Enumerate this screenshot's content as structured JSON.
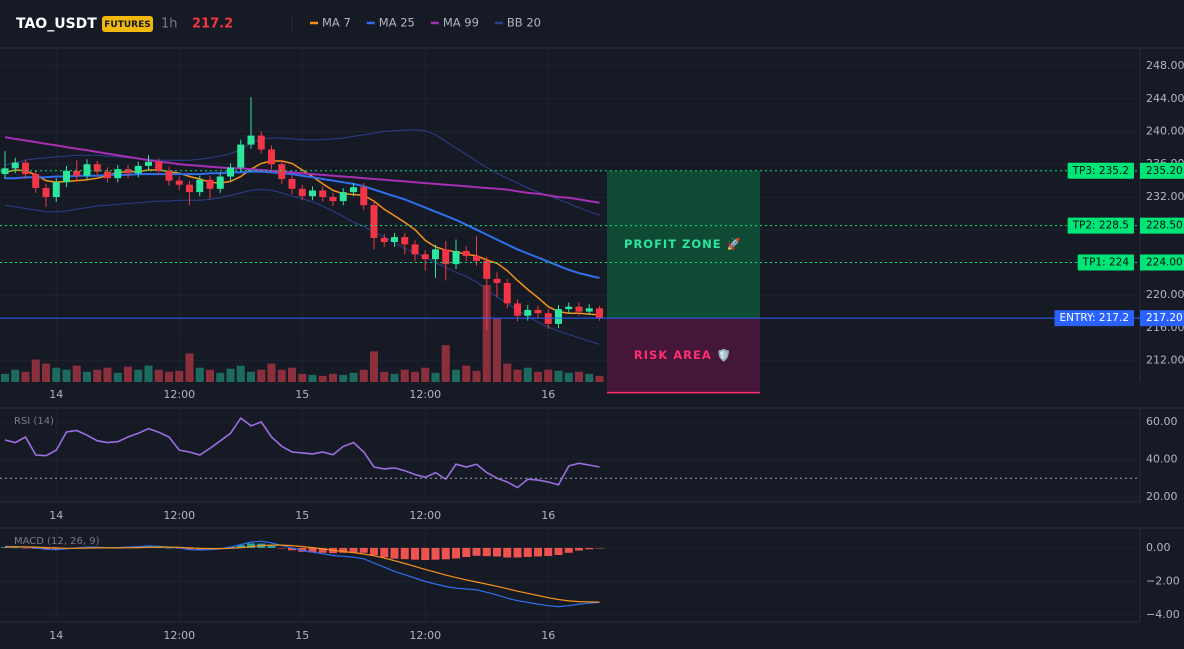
{
  "header": {
    "symbol": "TAO_USDT",
    "badge": "FUTURES",
    "interval": "1h",
    "price": 217.2
  },
  "chart_data": [
    {
      "type": "candlestick",
      "categories": [
        null,
        null,
        null,
        null,
        null,
        "14",
        null,
        null,
        null,
        null,
        null,
        null,
        null,
        null,
        null,
        null,
        null,
        "12:00",
        null,
        null,
        null,
        null,
        null,
        null,
        null,
        null,
        null,
        null,
        null,
        "15",
        null,
        null,
        null,
        null,
        null,
        null,
        null,
        null,
        null,
        null,
        null,
        "12:00",
        null,
        null,
        null,
        null,
        null,
        null,
        null,
        null,
        null,
        null,
        null,
        "16",
        null,
        null,
        null,
        null,
        null
      ],
      "open": [
        234.8,
        235.5,
        236.2,
        234.8,
        233.1,
        232.0,
        233.8,
        235.2,
        234.6,
        236.0,
        235.1,
        234.3,
        235.4,
        234.9,
        235.8,
        236.3,
        235.2,
        234.0,
        233.5,
        232.6,
        234.1,
        233.0,
        234.5,
        235.6,
        238.4,
        239.5,
        237.8,
        236.0,
        234.2,
        233.0,
        232.1,
        232.8,
        232.0,
        231.5,
        232.6,
        233.2,
        231.0,
        227.0,
        226.5,
        227.1,
        226.2,
        225.0,
        224.4,
        225.6,
        223.8,
        225.4,
        224.8,
        224.2,
        222.0,
        221.5,
        219.0,
        217.5,
        218.2,
        217.8,
        216.5,
        218.3,
        218.6,
        218.0,
        218.4
      ],
      "high": [
        237.6,
        236.8,
        236.6,
        235.3,
        233.6,
        234.3,
        235.8,
        236.5,
        236.6,
        236.4,
        235.6,
        235.9,
        235.9,
        236.3,
        237.1,
        236.7,
        235.7,
        234.5,
        234.0,
        234.6,
        234.6,
        235.0,
        236.1,
        239.0,
        244.2,
        240.0,
        238.3,
        236.5,
        234.7,
        233.5,
        233.3,
        233.3,
        232.5,
        233.1,
        233.7,
        233.7,
        231.5,
        227.5,
        227.6,
        227.6,
        226.7,
        225.5,
        226.2,
        226.6,
        226.8,
        226.0,
        227.2,
        224.7,
        222.8,
        222.0,
        219.5,
        218.8,
        218.7,
        218.3,
        218.8,
        219.1,
        219.1,
        218.9,
        218.7
      ],
      "low": [
        234.2,
        234.9,
        234.2,
        232.5,
        230.8,
        231.4,
        233.2,
        234.0,
        234.1,
        234.6,
        233.8,
        233.8,
        234.3,
        234.4,
        235.3,
        234.7,
        233.4,
        232.9,
        231.0,
        232.1,
        231.8,
        232.5,
        234.0,
        235.1,
        237.9,
        237.3,
        235.4,
        233.6,
        232.3,
        231.6,
        231.6,
        231.4,
        230.9,
        231.0,
        232.1,
        230.4,
        225.6,
        225.9,
        225.9,
        225.0,
        224.2,
        223.0,
        222.1,
        221.8,
        223.2,
        224.2,
        223.6,
        215.8,
        219.8,
        218.4,
        216.8,
        216.9,
        217.2,
        215.9,
        216.0,
        217.8,
        217.5,
        217.6,
        216.9
      ],
      "close": [
        235.5,
        236.2,
        234.8,
        233.1,
        232.0,
        233.8,
        235.2,
        234.6,
        236.0,
        235.1,
        234.3,
        235.4,
        234.9,
        235.8,
        236.3,
        235.2,
        234.0,
        233.5,
        232.6,
        234.1,
        233.0,
        234.5,
        235.6,
        238.4,
        239.5,
        237.8,
        236.0,
        234.2,
        233.0,
        232.1,
        232.8,
        232.0,
        231.5,
        232.6,
        233.2,
        231.0,
        227.0,
        226.5,
        227.1,
        226.2,
        225.0,
        224.4,
        225.6,
        223.8,
        225.4,
        224.8,
        224.2,
        222.0,
        221.5,
        219.0,
        217.5,
        218.2,
        217.8,
        216.5,
        218.3,
        218.6,
        218.0,
        218.4,
        217.2
      ],
      "up_color": "#2ee59d",
      "down_color": "#f23645",
      "volume": [
        8,
        12,
        10,
        22,
        18,
        14,
        12,
        16,
        10,
        12,
        14,
        9,
        15,
        12,
        16,
        12,
        10,
        11,
        28,
        14,
        12,
        9,
        13,
        16,
        10,
        12,
        18,
        12,
        14,
        8,
        7,
        6,
        8,
        7,
        9,
        12,
        30,
        10,
        8,
        12,
        10,
        14,
        9,
        36,
        12,
        16,
        11,
        95,
        62,
        18,
        12,
        14,
        10,
        12,
        11,
        9,
        10,
        8,
        6
      ],
      "volume_up_color": "#1c6b5e",
      "volume_down_color": "#8c2f3c",
      "series": [
        {
          "name": "MA 7",
          "color": "#f7931a",
          "values": [
            235.0,
            235.3,
            235.2,
            234.7,
            234.0,
            233.8,
            233.9,
            234.0,
            234.1,
            234.3,
            234.6,
            235.0,
            235.1,
            235.1,
            235.3,
            235.3,
            235.1,
            234.9,
            234.5,
            234.2,
            233.8,
            233.7,
            233.9,
            234.5,
            235.4,
            236.1,
            236.4,
            236.4,
            236.1,
            235.3,
            234.5,
            233.6,
            232.8,
            232.4,
            232.3,
            232.2,
            231.5,
            230.5,
            229.7,
            228.9,
            228.0,
            226.7,
            225.9,
            225.5,
            225.3,
            225.0,
            224.8,
            224.3,
            223.9,
            223.0,
            221.8,
            220.7,
            219.7,
            218.6,
            218.0,
            217.8,
            217.8,
            217.7,
            217.6
          ]
        },
        {
          "name": "MA 25",
          "color": "#2f6fed",
          "values": [
            234.3,
            234.3,
            234.4,
            234.4,
            234.4,
            234.5,
            234.5,
            234.6,
            234.6,
            234.6,
            234.7,
            234.7,
            234.7,
            234.8,
            234.8,
            234.8,
            234.8,
            234.8,
            234.8,
            234.8,
            234.9,
            234.9,
            235.0,
            235.0,
            235.1,
            235.1,
            235.0,
            234.9,
            234.8,
            234.6,
            234.4,
            234.2,
            234.0,
            233.8,
            233.6,
            233.3,
            232.9,
            232.5,
            232.1,
            231.7,
            231.2,
            230.7,
            230.2,
            229.7,
            229.2,
            228.6,
            228.0,
            227.4,
            226.8,
            226.2,
            225.6,
            225.1,
            224.6,
            224.1,
            223.6,
            223.1,
            222.7,
            222.4,
            222.1
          ]
        },
        {
          "name": "MA 99",
          "color": "#a62fb5",
          "values": [
            239.3,
            239.1,
            238.9,
            238.7,
            238.5,
            238.3,
            238.1,
            237.9,
            237.7,
            237.5,
            237.3,
            237.1,
            236.9,
            236.7,
            236.5,
            236.3,
            236.2,
            236.0,
            235.9,
            235.8,
            235.7,
            235.6,
            235.5,
            235.5,
            235.4,
            235.3,
            235.2,
            235.1,
            235.0,
            234.9,
            234.8,
            234.7,
            234.6,
            234.5,
            234.4,
            234.3,
            234.2,
            234.1,
            234.0,
            233.9,
            233.8,
            233.7,
            233.6,
            233.5,
            233.4,
            233.3,
            233.2,
            233.1,
            233.0,
            232.9,
            232.7,
            232.5,
            232.4,
            232.2,
            232.0,
            231.9,
            231.7,
            231.5,
            231.3
          ]
        }
      ],
      "bands": {
        "name": "BB 20",
        "color": "#2a3f8e",
        "upper": [
          235.9,
          236.2,
          236.5,
          236.7,
          236.8,
          236.9,
          237.0,
          237.1,
          237.1,
          237.1,
          237.0,
          236.9,
          236.8,
          236.7,
          236.6,
          236.5,
          236.5,
          236.5,
          236.5,
          236.6,
          236.8,
          237.0,
          237.3,
          237.8,
          238.6,
          239.1,
          239.2,
          239.2,
          239.1,
          239.0,
          239.0,
          239.0,
          239.1,
          239.2,
          239.4,
          239.6,
          239.8,
          240.0,
          240.1,
          240.2,
          240.2,
          240.1,
          239.6,
          238.8,
          238.0,
          237.2,
          236.4,
          235.6,
          234.9,
          234.3,
          233.7,
          233.1,
          232.6,
          232.2,
          231.7,
          231.2,
          230.7,
          230.2,
          229.8
        ],
        "lower": [
          231.0,
          230.8,
          230.6,
          230.4,
          230.2,
          230.2,
          230.3,
          230.5,
          230.7,
          230.9,
          231.0,
          231.1,
          231.2,
          231.3,
          231.4,
          231.5,
          231.5,
          231.6,
          231.6,
          231.6,
          231.7,
          231.9,
          232.2,
          232.5,
          232.8,
          232.9,
          232.8,
          232.5,
          232.1,
          231.8,
          231.4,
          230.9,
          230.3,
          229.6,
          228.9,
          228.4,
          227.8,
          227.1,
          226.4,
          225.7,
          225.2,
          224.6,
          224.0,
          223.4,
          222.8,
          222.3,
          221.6,
          220.7,
          219.8,
          219.0,
          218.2,
          217.4,
          216.7,
          216.1,
          215.6,
          215.2,
          214.8,
          214.4,
          214.0
        ]
      },
      "ylim": [
        209.4,
        250.2
      ],
      "yticks": [
        {
          "value": 248,
          "label": "248.00"
        },
        {
          "value": 244,
          "label": "244.00"
        },
        {
          "value": 240,
          "label": "240.00"
        },
        {
          "value": 236,
          "label": "236.00"
        },
        {
          "value": 232,
          "label": "232.00"
        },
        {
          "value": 228,
          "label": "228.00"
        },
        {
          "value": 224,
          "label": "224.00"
        },
        {
          "value": 220,
          "label": "220.00"
        },
        {
          "value": 216,
          "label": "216.00"
        },
        {
          "value": 212,
          "label": "212.00"
        }
      ],
      "levels": [
        {
          "label": "TP3: 235.2",
          "value": 235.2,
          "price_label": "235.20",
          "color": "#00e676",
          "text_color": "#0b0e14",
          "line_style": "dotted"
        },
        {
          "label": "TP2: 228.5",
          "value": 228.5,
          "price_label": "228.50",
          "color": "#00e676",
          "text_color": "#0b0e14",
          "line_style": "dotted"
        },
        {
          "label": "TP1: 224",
          "value": 224,
          "price_label": "224.00",
          "color": "#00e676",
          "text_color": "#0b0e14",
          "line_style": "dotted"
        },
        {
          "label": "ENTRY: 217.2",
          "value": 217.2,
          "price_label": "217.20",
          "color": "#2962ff",
          "text_color": "#ffffff",
          "line_style": "solid"
        }
      ],
      "zones": [
        {
          "label": "PROFIT ZONE 🚀",
          "from": 217.2,
          "to": 235.2,
          "color": "#0f4a35",
          "text_color": "#2ee59d"
        },
        {
          "label": "RISK AREA 🛡️",
          "from": 208.1,
          "to": 217.2,
          "color": "#44163a",
          "text_color": "#ff2e6e",
          "border_color": "#ff2e6e"
        }
      ]
    },
    {
      "type": "line",
      "title": "RSI (14)",
      "categories": [
        null,
        null,
        null,
        null,
        null,
        "14",
        null,
        null,
        null,
        null,
        null,
        null,
        null,
        null,
        null,
        null,
        null,
        "12:00",
        null,
        null,
        null,
        null,
        null,
        null,
        null,
        null,
        null,
        null,
        null,
        "15",
        null,
        null,
        null,
        null,
        null,
        null,
        null,
        null,
        null,
        null,
        null,
        "12:00",
        null,
        null,
        null,
        null,
        null,
        null,
        null,
        null,
        null,
        null,
        null,
        "16",
        null,
        null,
        null,
        null,
        null
      ],
      "values": [
        50.4,
        49,
        52,
        42.4,
        42,
        45,
        54.7,
        55.5,
        53,
        50,
        49,
        49.5,
        52,
        54,
        56.5,
        54.5,
        52,
        45,
        44,
        42.4,
        46,
        50,
        54,
        62.1,
        58,
        60,
        52,
        47,
        44,
        43.5,
        43,
        44,
        42.5,
        47,
        49,
        44,
        36,
        35,
        35.5,
        34,
        32,
        30.5,
        33,
        29.5,
        37.5,
        36,
        37.5,
        33,
        30,
        28,
        25,
        29.5,
        29,
        28,
        26.5,
        36.5,
        38,
        37,
        36
      ],
      "color": "#9b6fe0",
      "reference_line": 30,
      "ylim": [
        17.3,
        67.5
      ],
      "yticks": [
        {
          "value": 60,
          "label": "60.00"
        },
        {
          "value": 40,
          "label": "40.00"
        },
        {
          "value": 20,
          "label": "20.00"
        }
      ]
    },
    {
      "type": "macd",
      "title": "MACD (12, 26, 9)",
      "categories": [
        null,
        null,
        null,
        null,
        null,
        "14",
        null,
        null,
        null,
        null,
        null,
        null,
        null,
        null,
        null,
        null,
        null,
        "12:00",
        null,
        null,
        null,
        null,
        null,
        null,
        null,
        null,
        null,
        null,
        null,
        "15",
        null,
        null,
        null,
        null,
        null,
        null,
        null,
        null,
        null,
        null,
        null,
        "12:00",
        null,
        null,
        null,
        null,
        null,
        null,
        null,
        null,
        null,
        null,
        null,
        "16",
        null,
        null,
        null,
        null,
        null
      ],
      "macd": {
        "color": "#2f6fed",
        "values": [
          0.1,
          0.08,
          0.05,
          0.0,
          -0.08,
          -0.1,
          -0.05,
          0.0,
          0.05,
          0.05,
          0.0,
          0.02,
          0.05,
          0.08,
          0.12,
          0.1,
          0.05,
          0.0,
          -0.1,
          -0.12,
          -0.1,
          -0.05,
          0.05,
          0.2,
          0.35,
          0.4,
          0.3,
          0.15,
          0.0,
          -0.15,
          -0.25,
          -0.35,
          -0.45,
          -0.5,
          -0.55,
          -0.65,
          -0.9,
          -1.15,
          -1.4,
          -1.6,
          -1.8,
          -2.0,
          -2.15,
          -2.3,
          -2.4,
          -2.45,
          -2.5,
          -2.65,
          -2.8,
          -3.0,
          -3.15,
          -3.25,
          -3.35,
          -3.45,
          -3.5,
          -3.45,
          -3.35,
          -3.3,
          -3.25
        ]
      },
      "signal": {
        "color": "#f7931a",
        "values": [
          0.05,
          0.06,
          0.06,
          0.05,
          0.02,
          0.0,
          -0.02,
          -0.02,
          -0.01,
          0.0,
          0.0,
          0.0,
          0.01,
          0.02,
          0.04,
          0.05,
          0.05,
          0.04,
          0.01,
          -0.02,
          -0.04,
          -0.04,
          -0.02,
          0.02,
          0.08,
          0.14,
          0.17,
          0.17,
          0.14,
          0.08,
          0.02,
          -0.06,
          -0.14,
          -0.21,
          -0.28,
          -0.36,
          -0.47,
          -0.6,
          -0.76,
          -0.93,
          -1.1,
          -1.28,
          -1.45,
          -1.62,
          -1.77,
          -1.91,
          -2.03,
          -2.16,
          -2.29,
          -2.43,
          -2.58,
          -2.71,
          -2.84,
          -2.97,
          -3.08,
          -3.16,
          -3.2,
          -3.22,
          -3.23
        ]
      },
      "histogram": {
        "up_color": "#26a69a",
        "down_color": "#ef5350",
        "values": [
          0.05,
          0.02,
          -0.01,
          -0.05,
          -0.1,
          -0.1,
          -0.03,
          0.02,
          0.06,
          0.05,
          0.0,
          0.02,
          0.04,
          0.06,
          0.08,
          0.05,
          0.0,
          -0.04,
          -0.11,
          -0.1,
          -0.06,
          -0.01,
          0.07,
          0.18,
          0.27,
          0.26,
          0.13,
          -0.02,
          -0.14,
          -0.23,
          -0.27,
          -0.29,
          -0.31,
          -0.29,
          -0.27,
          -0.29,
          -0.43,
          -0.55,
          -0.64,
          -0.67,
          -0.7,
          -0.72,
          -0.7,
          -0.68,
          -0.63,
          -0.54,
          -0.47,
          -0.49,
          -0.51,
          -0.57,
          -0.57,
          -0.54,
          -0.51,
          -0.48,
          -0.42,
          -0.29,
          -0.15,
          -0.08,
          -0.02
        ]
      },
      "ylim": [
        -4.42,
        1.19
      ],
      "yticks": [
        {
          "value": 0,
          "label": "0.00"
        },
        {
          "value": -2,
          "label": "−2.00"
        },
        {
          "value": -4,
          "label": "−4.00"
        }
      ]
    }
  ]
}
